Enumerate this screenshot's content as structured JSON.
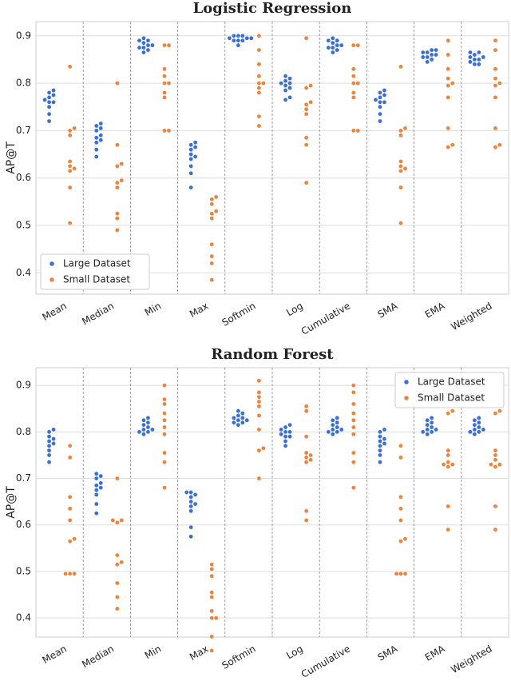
{
  "chart_data": [
    {
      "type": "swarm",
      "title": "Logistic Regression",
      "y_label": "AP@T",
      "categories": [
        "Mean",
        "Median",
        "Min",
        "Max",
        "Softmin",
        "Log",
        "Cumulative",
        "SMA",
        "EMA",
        "Weighted"
      ],
      "series": [
        {
          "name": "Large Dataset",
          "color": "#3b6fd4",
          "values": [
            [
              0.72,
              0.735,
              0.75,
              0.76,
              0.765,
              0.77,
              0.775,
              0.78,
              0.785,
              0.76
            ],
            [
              0.645,
              0.66,
              0.675,
              0.685,
              0.69,
              0.7,
              0.705,
              0.71,
              0.715,
              0.68
            ],
            [
              0.865,
              0.87,
              0.875,
              0.88,
              0.88,
              0.885,
              0.89,
              0.89,
              0.895,
              0.875
            ],
            [
              0.58,
              0.61,
              0.625,
              0.64,
              0.645,
              0.65,
              0.665,
              0.67,
              0.675,
              0.66
            ],
            [
              0.88,
              0.89,
              0.89,
              0.895,
              0.895,
              0.9,
              0.9,
              0.9,
              0.895,
              0.89
            ],
            [
              0.765,
              0.77,
              0.785,
              0.79,
              0.795,
              0.8,
              0.805,
              0.81,
              0.815,
              0.8
            ],
            [
              0.865,
              0.87,
              0.875,
              0.88,
              0.88,
              0.885,
              0.89,
              0.89,
              0.895,
              0.875
            ],
            [
              0.72,
              0.735,
              0.75,
              0.76,
              0.765,
              0.77,
              0.775,
              0.78,
              0.785,
              0.76
            ],
            [
              0.845,
              0.85,
              0.855,
              0.86,
              0.86,
              0.865,
              0.865,
              0.87,
              0.87,
              0.855
            ],
            [
              0.84,
              0.845,
              0.85,
              0.855,
              0.855,
              0.86,
              0.865,
              0.865,
              0.84,
              0.85
            ]
          ]
        },
        {
          "name": "Small Dataset",
          "color": "#ea843f",
          "values": [
            [
              0.505,
              0.58,
              0.615,
              0.625,
              0.635,
              0.69,
              0.7,
              0.705,
              0.835,
              0.62
            ],
            [
              0.49,
              0.515,
              0.525,
              0.58,
              0.59,
              0.595,
              0.625,
              0.63,
              0.67,
              0.8
            ],
            [
              0.7,
              0.7,
              0.77,
              0.78,
              0.8,
              0.8,
              0.83,
              0.88,
              0.88,
              0.815
            ],
            [
              0.385,
              0.42,
              0.435,
              0.46,
              0.515,
              0.525,
              0.53,
              0.555,
              0.56,
              0.545
            ],
            [
              0.71,
              0.73,
              0.78,
              0.79,
              0.8,
              0.8,
              0.815,
              0.84,
              0.87,
              0.9
            ],
            [
              0.59,
              0.67,
              0.685,
              0.735,
              0.745,
              0.755,
              0.76,
              0.79,
              0.795,
              0.895
            ],
            [
              0.7,
              0.7,
              0.77,
              0.78,
              0.8,
              0.8,
              0.83,
              0.88,
              0.88,
              0.815
            ],
            [
              0.505,
              0.58,
              0.615,
              0.625,
              0.635,
              0.69,
              0.7,
              0.705,
              0.835,
              0.62
            ],
            [
              0.665,
              0.67,
              0.705,
              0.77,
              0.795,
              0.8,
              0.81,
              0.83,
              0.86,
              0.89
            ],
            [
              0.665,
              0.67,
              0.705,
              0.77,
              0.795,
              0.8,
              0.81,
              0.83,
              0.87,
              0.89
            ]
          ]
        }
      ],
      "ylim": [
        0.355,
        0.93
      ],
      "yticks": [
        0.4,
        0.5,
        0.6,
        0.7,
        0.8,
        0.9
      ],
      "grid": true,
      "legend": "lower-left"
    },
    {
      "type": "swarm",
      "title": "Random Forest",
      "y_label": "AP@T",
      "categories": [
        "Mean",
        "Median",
        "Min",
        "Max",
        "Softmin",
        "Log",
        "Cumulative",
        "SMA",
        "EMA",
        "Weighted"
      ],
      "series": [
        {
          "name": "Large Dataset",
          "color": "#3b6fd4",
          "values": [
            [
              0.735,
              0.75,
              0.76,
              0.77,
              0.775,
              0.78,
              0.785,
              0.79,
              0.8,
              0.805
            ],
            [
              0.625,
              0.645,
              0.665,
              0.675,
              0.68,
              0.685,
              0.69,
              0.7,
              0.705,
              0.71
            ],
            [
              0.795,
              0.8,
              0.8,
              0.805,
              0.805,
              0.81,
              0.815,
              0.82,
              0.825,
              0.83
            ],
            [
              0.575,
              0.595,
              0.63,
              0.64,
              0.645,
              0.65,
              0.66,
              0.665,
              0.67,
              0.67
            ],
            [
              0.815,
              0.82,
              0.82,
              0.825,
              0.825,
              0.83,
              0.83,
              0.835,
              0.84,
              0.845
            ],
            [
              0.77,
              0.78,
              0.79,
              0.795,
              0.8,
              0.8,
              0.805,
              0.81,
              0.815,
              0.79
            ],
            [
              0.795,
              0.8,
              0.8,
              0.805,
              0.805,
              0.81,
              0.815,
              0.82,
              0.825,
              0.83
            ],
            [
              0.735,
              0.75,
              0.76,
              0.77,
              0.775,
              0.78,
              0.785,
              0.79,
              0.8,
              0.805
            ],
            [
              0.795,
              0.8,
              0.8,
              0.805,
              0.805,
              0.81,
              0.815,
              0.82,
              0.825,
              0.83
            ],
            [
              0.795,
              0.8,
              0.8,
              0.805,
              0.805,
              0.81,
              0.815,
              0.82,
              0.825,
              0.83
            ]
          ]
        },
        {
          "name": "Small Dataset",
          "color": "#ea843f",
          "values": [
            [
              0.495,
              0.495,
              0.495,
              0.565,
              0.57,
              0.61,
              0.635,
              0.66,
              0.745,
              0.77
            ],
            [
              0.42,
              0.445,
              0.475,
              0.515,
              0.52,
              0.535,
              0.605,
              0.61,
              0.61,
              0.7
            ],
            [
              0.68,
              0.735,
              0.755,
              0.795,
              0.81,
              0.825,
              0.84,
              0.86,
              0.87,
              0.9
            ],
            [
              0.33,
              0.36,
              0.4,
              0.4,
              0.415,
              0.445,
              0.455,
              0.49,
              0.505,
              0.515
            ],
            [
              0.7,
              0.76,
              0.765,
              0.805,
              0.835,
              0.855,
              0.865,
              0.875,
              0.885,
              0.91
            ],
            [
              0.61,
              0.63,
              0.735,
              0.74,
              0.745,
              0.75,
              0.755,
              0.79,
              0.845,
              0.855
            ],
            [
              0.68,
              0.735,
              0.755,
              0.795,
              0.81,
              0.825,
              0.84,
              0.86,
              0.885,
              0.9
            ],
            [
              0.495,
              0.495,
              0.495,
              0.565,
              0.57,
              0.61,
              0.635,
              0.66,
              0.745,
              0.77
            ],
            [
              0.59,
              0.64,
              0.725,
              0.73,
              0.735,
              0.75,
              0.76,
              0.84,
              0.845,
              0.73
            ],
            [
              0.59,
              0.64,
              0.725,
              0.73,
              0.73,
              0.74,
              0.75,
              0.76,
              0.84,
              0.845
            ]
          ]
        }
      ],
      "ylim": [
        0.359,
        0.938
      ],
      "yticks": [
        0.4,
        0.5,
        0.6,
        0.7,
        0.8,
        0.9
      ],
      "grid": true,
      "legend": "upper-right"
    }
  ]
}
